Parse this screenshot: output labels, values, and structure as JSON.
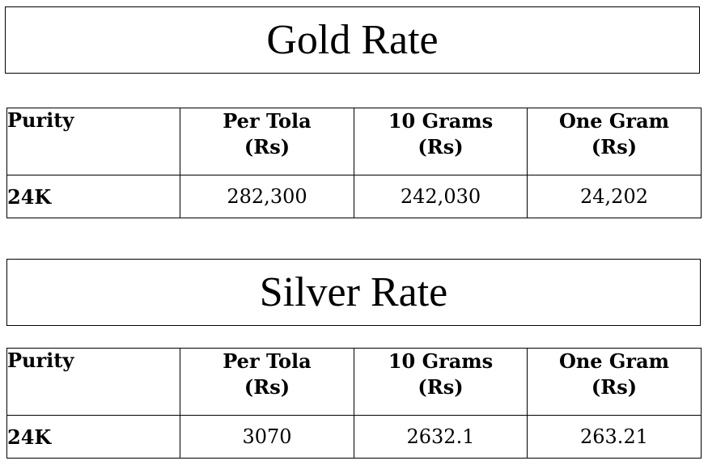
{
  "gold": {
    "title": "Gold Rate",
    "headers": {
      "purity": "Purity",
      "per_tola": {
        "line1": "Per Tola",
        "line2": "(Rs)"
      },
      "ten_grams": {
        "line1": "10 Grams",
        "line2": "(Rs)"
      },
      "one_gram": {
        "line1": "One Gram",
        "line2": "(Rs)"
      }
    },
    "rows": [
      {
        "purity": "24K",
        "per_tola": "282,300",
        "ten_grams": "242,030",
        "one_gram": "24,202"
      }
    ]
  },
  "silver": {
    "title": "Silver Rate",
    "headers": {
      "purity": "Purity",
      "per_tola": {
        "line1": "Per Tola",
        "line2": "(Rs)"
      },
      "ten_grams": {
        "line1": "10 Grams",
        "line2": "(Rs)"
      },
      "one_gram": {
        "line1": "One Gram",
        "line2": "(Rs)"
      }
    },
    "rows": [
      {
        "purity": "24K",
        "per_tola": "3070",
        "ten_grams": "2632.1",
        "one_gram": "263.21"
      }
    ]
  }
}
